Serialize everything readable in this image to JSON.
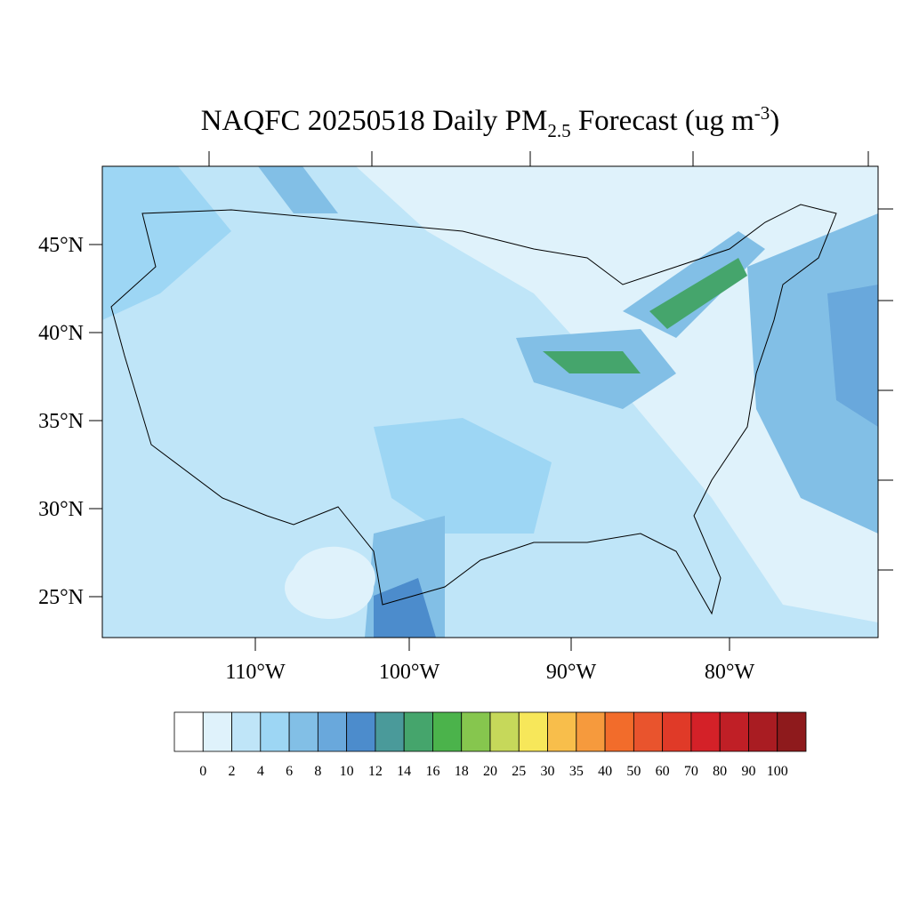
{
  "title": {
    "main": "NAQFC 20250518 Daily PM",
    "subscript": "2.5",
    "middle": " Forecast (ug m",
    "superscript": "-3",
    "end": ")"
  },
  "latitude_labels": [
    "45°N",
    "40°N",
    "35°N",
    "30°N",
    "25°N"
  ],
  "longitude_labels": [
    "110°W",
    "100°W",
    "90°W",
    "80°W"
  ],
  "colorbar": {
    "levels": [
      0,
      2,
      4,
      6,
      8,
      10,
      12,
      14,
      16,
      18,
      20,
      25,
      30,
      35,
      40,
      50,
      60,
      70,
      80,
      90,
      100
    ],
    "colors": [
      "#ffffff",
      "#dff2fb",
      "#bfe5f8",
      "#9dd6f4",
      "#82bfe6",
      "#69a8dc",
      "#4c8ccc",
      "#4a9a9a",
      "#45a56c",
      "#4bb34b",
      "#86c64e",
      "#c6d85a",
      "#f7e75a",
      "#f8be4b",
      "#f69a3d",
      "#f26c2b",
      "#e9542d",
      "#e03a28",
      "#d42128",
      "#c01f26",
      "#a91c22",
      "#8e1a1c"
    ]
  }
}
